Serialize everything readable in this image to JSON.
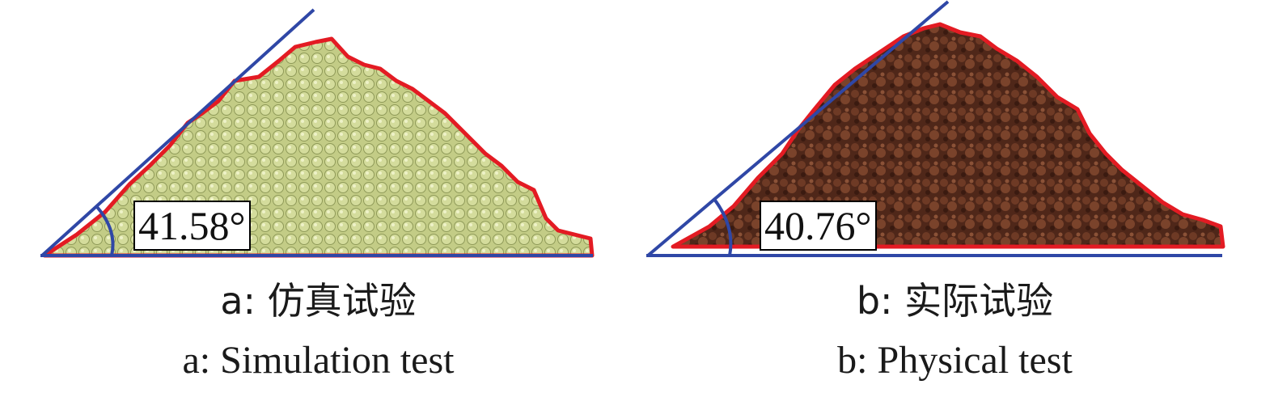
{
  "panels": [
    {
      "angle_label": "41.58°",
      "caption_cn": "a: 仿真试验",
      "caption_en": "a: Simulation test",
      "pile_color": "#c6cf8a",
      "outline_color": "#e31b23",
      "line_color": "#2f47a6"
    },
    {
      "angle_label": "40.76°",
      "caption_cn": "b: 实际试验",
      "caption_en": "b: Physical test",
      "pile_color": "#5a2d1c",
      "outline_color": "#e31b23",
      "line_color": "#2f47a6"
    }
  ]
}
